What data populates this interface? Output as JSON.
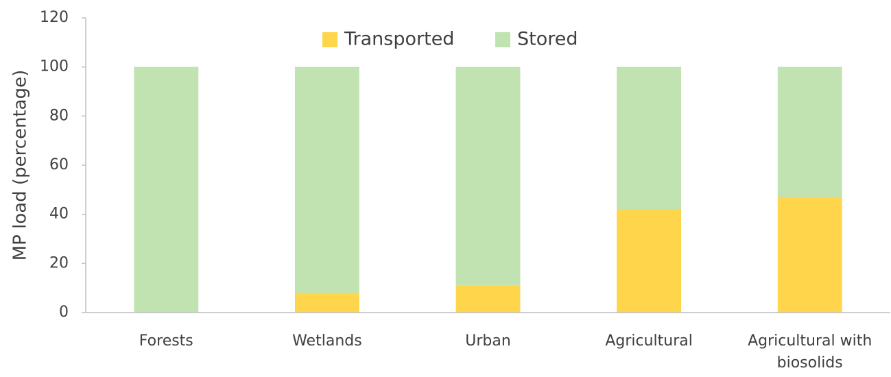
{
  "chart_data": {
    "type": "stacked_bar",
    "y_label": "MP load (percentage)",
    "categories": [
      "Forests",
      "Wetlands",
      "Urban",
      "Agricultural",
      "Agricultural with biosolids"
    ],
    "series": [
      {
        "name": "Transported",
        "color": "#ffd54c",
        "values": [
          0,
          8,
          11,
          42,
          47
        ]
      },
      {
        "name": "Stored",
        "color": "#c1e2b1",
        "values": [
          100,
          92,
          89,
          58,
          53
        ]
      }
    ],
    "ylim": [
      0,
      120
    ],
    "yticks": [
      0,
      20,
      40,
      60,
      80,
      100,
      120
    ],
    "grid": false,
    "legend": "top"
  }
}
